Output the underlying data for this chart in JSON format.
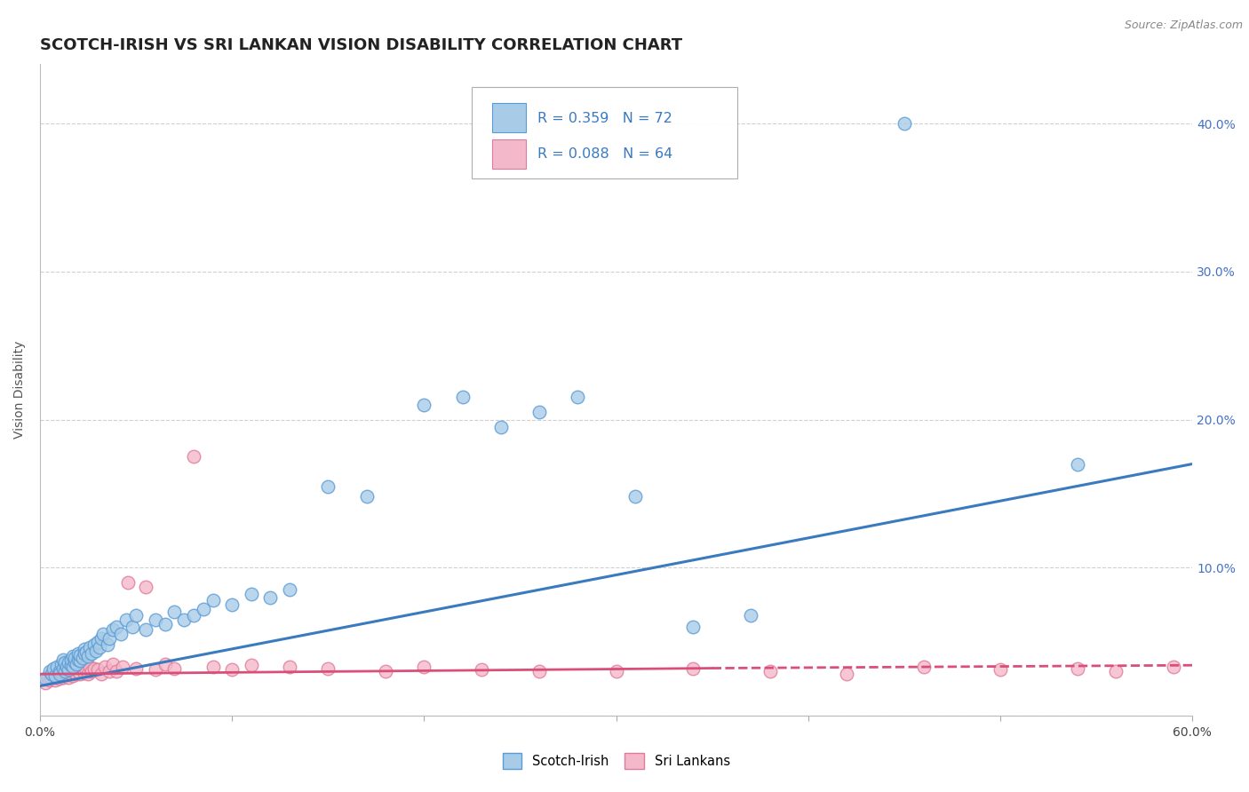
{
  "title": "SCOTCH-IRISH VS SRI LANKAN VISION DISABILITY CORRELATION CHART",
  "source": "Source: ZipAtlas.com",
  "ylabel": "Vision Disability",
  "xlim": [
    0.0,
    0.6
  ],
  "ylim": [
    0.0,
    0.44
  ],
  "yticks": [
    0.0,
    0.1,
    0.2,
    0.3,
    0.4
  ],
  "ytick_labels": [
    "",
    "10.0%",
    "20.0%",
    "30.0%",
    "40.0%"
  ],
  "xticks": [
    0.0,
    0.1,
    0.2,
    0.3,
    0.4,
    0.5,
    0.6
  ],
  "scotch_irish_R": 0.359,
  "scotch_irish_N": 72,
  "sri_lankan_R": 0.088,
  "sri_lankan_N": 64,
  "blue_fill": "#a8cce8",
  "blue_edge": "#5b9bd5",
  "pink_fill": "#f4b8cb",
  "pink_edge": "#e07a9a",
  "blue_line": "#3a7abf",
  "pink_line": "#d94f7a",
  "scotch_irish_x": [
    0.003,
    0.005,
    0.006,
    0.007,
    0.008,
    0.009,
    0.01,
    0.01,
    0.011,
    0.012,
    0.012,
    0.013,
    0.013,
    0.014,
    0.015,
    0.015,
    0.016,
    0.016,
    0.017,
    0.017,
    0.018,
    0.018,
    0.019,
    0.02,
    0.02,
    0.021,
    0.021,
    0.022,
    0.023,
    0.023,
    0.024,
    0.025,
    0.026,
    0.027,
    0.028,
    0.029,
    0.03,
    0.031,
    0.032,
    0.033,
    0.035,
    0.036,
    0.038,
    0.04,
    0.042,
    0.045,
    0.048,
    0.05,
    0.055,
    0.06,
    0.065,
    0.07,
    0.075,
    0.08,
    0.085,
    0.09,
    0.1,
    0.11,
    0.12,
    0.13,
    0.15,
    0.17,
    0.2,
    0.22,
    0.24,
    0.26,
    0.28,
    0.31,
    0.34,
    0.37,
    0.45,
    0.54
  ],
  "scotch_irish_y": [
    0.025,
    0.03,
    0.028,
    0.032,
    0.027,
    0.033,
    0.03,
    0.028,
    0.035,
    0.032,
    0.038,
    0.03,
    0.036,
    0.033,
    0.031,
    0.036,
    0.034,
    0.038,
    0.033,
    0.04,
    0.036,
    0.039,
    0.035,
    0.038,
    0.042,
    0.037,
    0.041,
    0.039,
    0.045,
    0.042,
    0.043,
    0.04,
    0.046,
    0.042,
    0.048,
    0.044,
    0.05,
    0.046,
    0.052,
    0.055,
    0.048,
    0.052,
    0.058,
    0.06,
    0.055,
    0.065,
    0.06,
    0.068,
    0.058,
    0.065,
    0.062,
    0.07,
    0.065,
    0.068,
    0.072,
    0.078,
    0.075,
    0.082,
    0.08,
    0.085,
    0.155,
    0.148,
    0.21,
    0.215,
    0.195,
    0.205,
    0.215,
    0.148,
    0.06,
    0.068,
    0.4,
    0.17
  ],
  "sri_lankan_x": [
    0.003,
    0.004,
    0.005,
    0.006,
    0.006,
    0.007,
    0.008,
    0.008,
    0.009,
    0.01,
    0.01,
    0.011,
    0.012,
    0.012,
    0.013,
    0.014,
    0.015,
    0.015,
    0.016,
    0.016,
    0.017,
    0.018,
    0.019,
    0.02,
    0.021,
    0.022,
    0.023,
    0.024,
    0.025,
    0.026,
    0.027,
    0.028,
    0.03,
    0.032,
    0.034,
    0.036,
    0.038,
    0.04,
    0.043,
    0.046,
    0.05,
    0.055,
    0.06,
    0.065,
    0.07,
    0.08,
    0.09,
    0.1,
    0.11,
    0.13,
    0.15,
    0.18,
    0.2,
    0.23,
    0.26,
    0.3,
    0.34,
    0.38,
    0.42,
    0.46,
    0.5,
    0.54,
    0.56,
    0.59
  ],
  "sri_lankan_y": [
    0.022,
    0.026,
    0.024,
    0.028,
    0.025,
    0.027,
    0.024,
    0.03,
    0.026,
    0.028,
    0.025,
    0.027,
    0.026,
    0.03,
    0.027,
    0.028,
    0.026,
    0.03,
    0.028,
    0.032,
    0.027,
    0.029,
    0.028,
    0.03,
    0.028,
    0.032,
    0.029,
    0.031,
    0.028,
    0.033,
    0.03,
    0.032,
    0.031,
    0.028,
    0.033,
    0.03,
    0.035,
    0.03,
    0.033,
    0.09,
    0.032,
    0.087,
    0.031,
    0.035,
    0.032,
    0.175,
    0.033,
    0.031,
    0.034,
    0.033,
    0.032,
    0.03,
    0.033,
    0.031,
    0.03,
    0.03,
    0.032,
    0.03,
    0.028,
    0.033,
    0.031,
    0.032,
    0.03,
    0.033
  ],
  "background_color": "#ffffff",
  "grid_color": "#d0d0d0",
  "title_fontsize": 13,
  "axis_label_fontsize": 10,
  "tick_label_fontsize": 10,
  "legend_fontsize": 12
}
